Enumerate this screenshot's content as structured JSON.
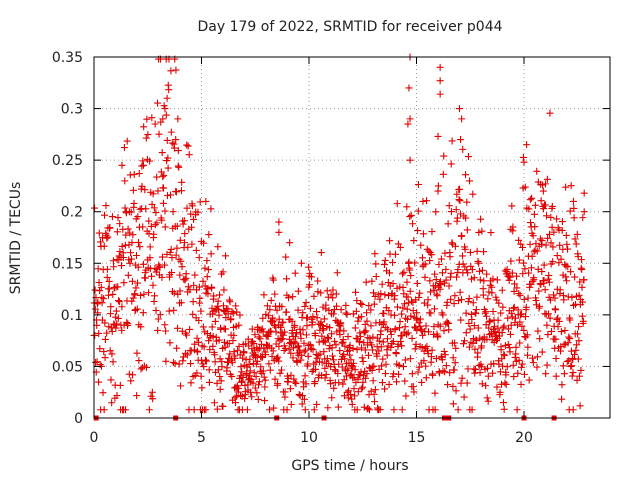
{
  "chart_data": {
    "type": "scatter",
    "title": "Day 179 of 2022, SRMTID for receiver p044",
    "xlabel": "GPS time / hours",
    "ylabel": "SRMTID / TECUs",
    "xlim": [
      0,
      24
    ],
    "ylim": [
      0,
      0.35
    ],
    "x_ticks": [
      0,
      5,
      10,
      15,
      20
    ],
    "x_tick_labels": [
      "0",
      "5",
      "10",
      "15",
      "20"
    ],
    "y_ticks": [
      0,
      0.05,
      0.1,
      0.15,
      0.2,
      0.25,
      0.3,
      0.35
    ],
    "y_tick_labels": [
      "0",
      "0.05",
      "0.1",
      "0.15",
      "0.2",
      "0.25",
      "0.3",
      "0.35"
    ],
    "grid": true,
    "marker": "+",
    "color": "#e00000",
    "series": [
      {
        "name": "p044",
        "envelope": [
          [
            0.0,
            0.09
          ],
          [
            0.5,
            0.11
          ],
          [
            1.0,
            0.12
          ],
          [
            1.5,
            0.14
          ],
          [
            2.0,
            0.13
          ],
          [
            2.5,
            0.15
          ],
          [
            3.0,
            0.17
          ],
          [
            3.4,
            0.2
          ],
          [
            3.8,
            0.18
          ],
          [
            4.2,
            0.13
          ],
          [
            5.0,
            0.1
          ],
          [
            5.5,
            0.09
          ],
          [
            6.0,
            0.075
          ],
          [
            6.5,
            0.06
          ],
          [
            7.0,
            0.045
          ],
          [
            7.5,
            0.05
          ],
          [
            8.0,
            0.06
          ],
          [
            8.5,
            0.075
          ],
          [
            9.0,
            0.07
          ],
          [
            9.5,
            0.065
          ],
          [
            10.0,
            0.08
          ],
          [
            10.5,
            0.075
          ],
          [
            11.0,
            0.065
          ],
          [
            12.0,
            0.06
          ],
          [
            12.5,
            0.055
          ],
          [
            13.0,
            0.07
          ],
          [
            13.5,
            0.085
          ],
          [
            14.0,
            0.09
          ],
          [
            14.5,
            0.1
          ],
          [
            15.0,
            0.1
          ],
          [
            15.5,
            0.095
          ],
          [
            16.0,
            0.1
          ],
          [
            16.5,
            0.12
          ],
          [
            17.0,
            0.13
          ],
          [
            17.5,
            0.11
          ],
          [
            18.0,
            0.1
          ],
          [
            18.5,
            0.08
          ],
          [
            19.0,
            0.07
          ],
          [
            19.5,
            0.1
          ],
          [
            20.0,
            0.12
          ],
          [
            20.5,
            0.14
          ],
          [
            21.0,
            0.14
          ],
          [
            21.5,
            0.12
          ],
          [
            22.0,
            0.1
          ],
          [
            22.5,
            0.1
          ],
          [
            22.8,
            0.11
          ]
        ],
        "spikes": [
          [
            3.4,
            0.31
          ],
          [
            3.3,
            0.3
          ],
          [
            3.2,
            0.29
          ],
          [
            3.9,
            0.29
          ],
          [
            3.8,
            0.27
          ],
          [
            1.3,
            0.245
          ],
          [
            2.3,
            0.245
          ],
          [
            14.7,
            0.35
          ],
          [
            14.65,
            0.32
          ],
          [
            14.7,
            0.29
          ],
          [
            14.6,
            0.285
          ],
          [
            16.1,
            0.34
          ],
          [
            16.1,
            0.327
          ],
          [
            16.1,
            0.314
          ],
          [
            16.0,
            0.273
          ],
          [
            17.0,
            0.3
          ],
          [
            17.1,
            0.29
          ],
          [
            17.05,
            0.27
          ],
          [
            20.0,
            0.248
          ],
          [
            21.0,
            0.227
          ],
          [
            20.9,
            0.22
          ],
          [
            22.8,
            0.218
          ],
          [
            22.8,
            0.2
          ],
          [
            22.3,
            0.21
          ],
          [
            5.2,
            0.21
          ],
          [
            9.1,
            0.17
          ],
          [
            8.6,
            0.19
          ],
          [
            8.6,
            0.18
          ],
          [
            14.7,
            0.25
          ],
          [
            15.3,
            0.21
          ],
          [
            16.0,
            0.22
          ]
        ],
        "zero_markers": [
          0.1,
          3.8,
          8.5,
          10.7,
          16.3,
          16.5,
          20.0,
          21.4
        ]
      }
    ]
  }
}
